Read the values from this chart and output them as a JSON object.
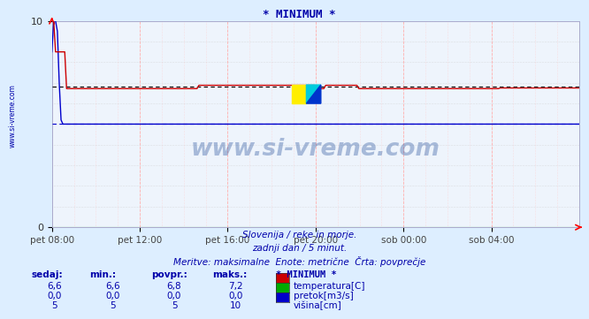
{
  "title": "* MINIMUM *",
  "bg_color": "#ddeeff",
  "plot_bg_color": "#eef4fc",
  "x_labels": [
    "pet 08:00",
    "pet 12:00",
    "pet 16:00",
    "pet 20:00",
    "sob 00:00",
    "sob 04:00"
  ],
  "x_ticks_norm": [
    0.0,
    0.1667,
    0.3333,
    0.5,
    0.6667,
    0.8333
  ],
  "ylim": [
    0,
    10
  ],
  "yticks": [
    0,
    10
  ],
  "temp_avg": 6.8,
  "visina_avg": 5,
  "temp_color": "#cc0000",
  "pretok_color": "#00aa00",
  "visina_color": "#0000cc",
  "avg_line_color": "#000000",
  "subtitle1": "Slovenija / reke in morje.",
  "subtitle2": "zadnji dan / 5 minut.",
  "subtitle3": "Meritve: maksimalne  Enote: metrične  Črta: povprečje",
  "table_headers": [
    "sedaj:",
    "min.:",
    "povpr.:",
    "maks.:",
    "* MINIMUM *"
  ],
  "table_data": [
    [
      "6,6",
      "6,6",
      "6,8",
      "7,2",
      "temperatura[C]"
    ],
    [
      "0,0",
      "0,0",
      "0,0",
      "0,0",
      "pretok[m3/s]"
    ],
    [
      "5",
      "5",
      "5",
      "10",
      "višina[cm]"
    ]
  ],
  "watermark": "www.si-vreme.com",
  "side_label": "www.si-vreme.com",
  "font_color": "#0000aa",
  "font_color_dark": "#000066"
}
